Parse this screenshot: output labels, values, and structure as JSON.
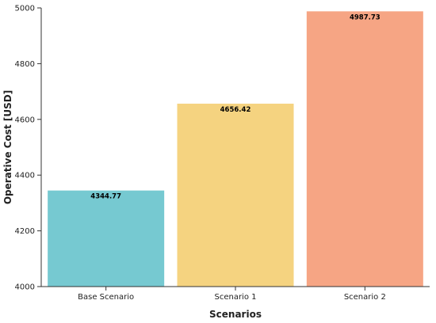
{
  "chart_data": {
    "type": "bar",
    "categories": [
      "Base Scenario",
      "Scenario 1",
      "Scenario 2"
    ],
    "values": [
      4344.77,
      4656.42,
      4987.73
    ],
    "value_labels": [
      "4344.77",
      "4656.42",
      "4987.73"
    ],
    "colors": [
      "#76c9d1",
      "#f5d380",
      "#f6a584"
    ],
    "xlabel": "Scenarios",
    "ylabel": "Operative Cost [USD]",
    "ylim": [
      4000,
      5000
    ],
    "yticks": [
      4000,
      4200,
      4400,
      4600,
      4800,
      5000
    ],
    "ytick_labels": [
      "4000",
      "4200",
      "4400",
      "4600",
      "4800",
      "5000"
    ],
    "grid": false,
    "legend": "none"
  }
}
